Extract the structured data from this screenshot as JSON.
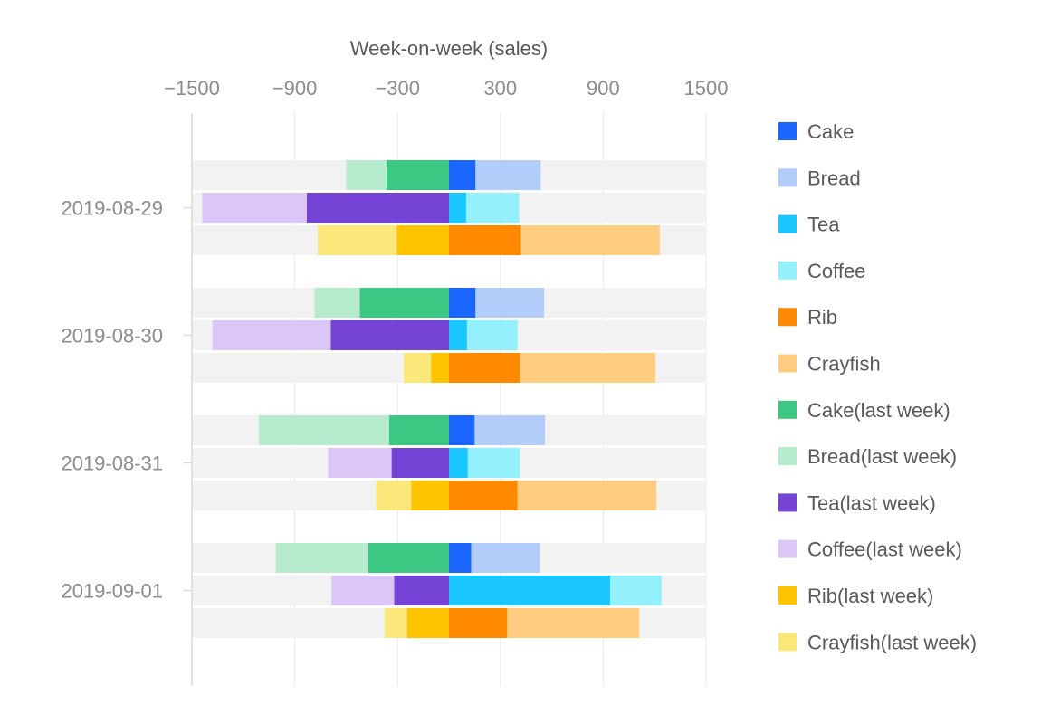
{
  "chart_data": {
    "type": "bar",
    "orientation": "horizontal",
    "layout": "grouped-stacked-diverging",
    "x_axis_title": "Week-on-week (sales)",
    "x_axis_position": "top",
    "xlim": [
      -1500,
      1500
    ],
    "x_ticks": [
      -1500,
      -900,
      -300,
      300,
      900,
      1500
    ],
    "x_tick_labels": [
      "−1500",
      "−900",
      "−300",
      "300",
      "900",
      "1500"
    ],
    "categories": [
      "2019-08-29",
      "2019-08-30",
      "2019-08-31",
      "2019-09-01"
    ],
    "groups": [
      "Cake/Bread",
      "Tea/Coffee",
      "Rib/Crayfish"
    ],
    "series": [
      {
        "name": "Cake",
        "group": 0,
        "color": "#1B66FF",
        "values": [
          155,
          155,
          150,
          130
        ]
      },
      {
        "name": "Bread",
        "group": 0,
        "color": "#B3CDFB",
        "values": [
          380,
          400,
          410,
          400
        ]
      },
      {
        "name": "Tea",
        "group": 1,
        "color": "#1AC6FF",
        "values": [
          100,
          105,
          110,
          940
        ]
      },
      {
        "name": "Coffee",
        "group": 1,
        "color": "#94F0FD",
        "values": [
          310,
          295,
          305,
          300
        ]
      },
      {
        "name": "Rib",
        "group": 2,
        "color": "#FF8A00",
        "values": [
          420,
          415,
          400,
          340
        ]
      },
      {
        "name": "Crayfish",
        "group": 2,
        "color": "#FFCC80",
        "values": [
          810,
          790,
          810,
          770
        ]
      },
      {
        "name": "Cake(last week)",
        "group": 0,
        "color": "#3CC782",
        "values": [
          -365,
          -520,
          -350,
          -470
        ]
      },
      {
        "name": "Bread(last week)",
        "group": 0,
        "color": "#B7EBCD",
        "values": [
          -235,
          -265,
          -760,
          -540
        ]
      },
      {
        "name": "Tea(last week)",
        "group": 1,
        "color": "#7442D4",
        "values": [
          -830,
          -690,
          -335,
          -320
        ]
      },
      {
        "name": "Coffee(last week)",
        "group": 1,
        "color": "#DCC6F8",
        "values": [
          -610,
          -690,
          -370,
          -365
        ]
      },
      {
        "name": "Rib(last week)",
        "group": 2,
        "color": "#FFC300",
        "values": [
          -305,
          -105,
          -220,
          -245
        ]
      },
      {
        "name": "Crayfish(last week)",
        "group": 2,
        "color": "#FBE77A",
        "values": [
          -460,
          -160,
          -205,
          -130
        ]
      }
    ],
    "background_bar_color": "#F2F2F2",
    "grid": true,
    "legend_position": "right"
  }
}
